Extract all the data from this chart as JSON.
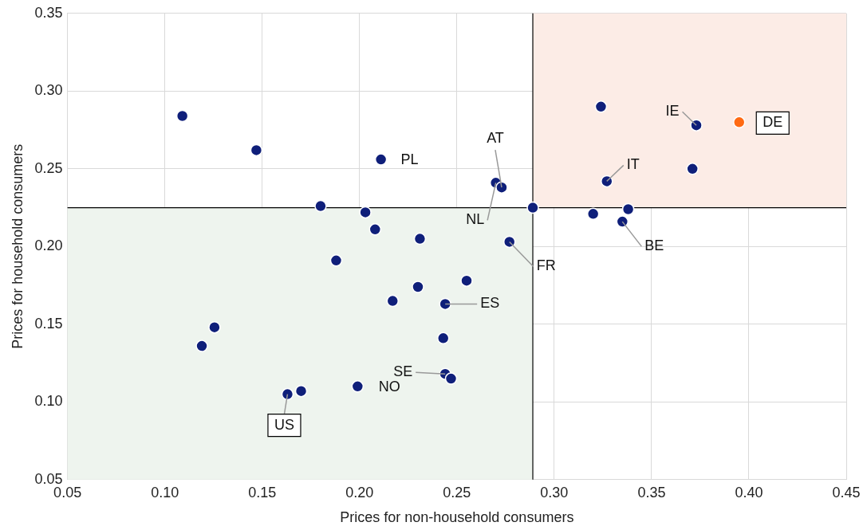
{
  "chart_data": {
    "type": "scatter",
    "xlabel": "Prices for non-household consumers",
    "ylabel": "Prices for household consumers",
    "xlim": [
      0.05,
      0.45
    ],
    "xticks": [
      0.05,
      {
        "value": 0.1,
        "label": "0.10"
      },
      0.15,
      {
        "value": 0.2,
        "label": "0.20"
      },
      0.25,
      {
        "value": 0.3,
        "label": "0.30"
      },
      0.35,
      {
        "value": 0.4,
        "label": "0.40"
      },
      0.45
    ],
    "ylim": [
      0.05,
      0.35
    ],
    "yticks": [
      0.05,
      {
        "value": 0.1,
        "label": "0.10"
      },
      0.15,
      {
        "value": 0.2,
        "label": "0.20"
      },
      0.25,
      {
        "value": 0.3,
        "label": "0.30"
      },
      0.35
    ],
    "grid": true,
    "legend": false,
    "marker": "circle",
    "x": [
      0.109,
      0.147,
      0.211,
      0.18,
      0.203,
      0.208,
      0.231,
      0.188,
      0.255,
      0.23,
      0.217,
      0.244,
      0.1255,
      0.119,
      0.243,
      0.244,
      0.247,
      0.199,
      0.17,
      0.163,
      0.27,
      0.273,
      0.289,
      0.277,
      0.324,
      0.327,
      0.32,
      0.338,
      0.335,
      0.371,
      0.373,
      0.395
    ],
    "values": [
      0.284,
      0.262,
      0.256,
      0.226,
      0.222,
      0.211,
      0.205,
      0.191,
      0.178,
      0.174,
      0.165,
      0.163,
      0.148,
      0.136,
      0.141,
      0.118,
      0.115,
      0.11,
      0.107,
      0.105,
      0.241,
      0.238,
      0.225,
      0.203,
      0.29,
      0.242,
      0.221,
      0.224,
      0.216,
      0.25,
      0.278,
      0.28
    ],
    "colors": [
      "#0f1f7a",
      "#0f1f7a",
      "#0f1f7a",
      "#0f1f7a",
      "#0f1f7a",
      "#0f1f7a",
      "#0f1f7a",
      "#0f1f7a",
      "#0f1f7a",
      "#0f1f7a",
      "#0f1f7a",
      "#0f1f7a",
      "#0f1f7a",
      "#0f1f7a",
      "#0f1f7a",
      "#0f1f7a",
      "#0f1f7a",
      "#0f1f7a",
      "#0f1f7a",
      "#0f1f7a",
      "#0f1f7a",
      "#0f1f7a",
      "#0f1f7a",
      "#0f1f7a",
      "#0f1f7a",
      "#0f1f7a",
      "#0f1f7a",
      "#0f1f7a",
      "#0f1f7a",
      "#0f1f7a",
      "#0f1f7a",
      "#ff6a13"
    ],
    "ref_lines": [
      {
        "axis": "x",
        "value": 0.289,
        "color": "#000000"
      },
      {
        "axis": "y",
        "value": 0.225,
        "color": "#000000"
      }
    ],
    "bands": [
      {
        "axis": "x",
        "from": 0.05,
        "to": 0.289,
        "color": "#eef4ee"
      },
      {
        "axis": "x",
        "from": 0.289,
        "to": 0.45,
        "color": "#fcece6"
      }
    ],
    "annotations": [
      {
        "text": "PL",
        "x": 0.211,
        "y": 0.256
      },
      {
        "text": "ES",
        "x": 0.244,
        "y": 0.163
      },
      {
        "text": "SE",
        "x": 0.244,
        "y": 0.118
      },
      {
        "text": "NO",
        "x": 0.199,
        "y": 0.11
      },
      {
        "text": "US",
        "x": 0.163,
        "y": 0.105
      },
      {
        "text": "NL",
        "x": 0.27,
        "y": 0.241
      },
      {
        "text": "AT",
        "x": 0.273,
        "y": 0.238
      },
      {
        "text": "FR",
        "x": 0.277,
        "y": 0.203
      },
      {
        "text": "IT",
        "x": 0.327,
        "y": 0.242
      },
      {
        "text": "BE",
        "x": 0.335,
        "y": 0.216
      },
      {
        "text": "IE",
        "x": 0.373,
        "y": 0.278
      },
      {
        "text": "DE",
        "x": 0.395,
        "y": 0.28
      }
    ]
  }
}
